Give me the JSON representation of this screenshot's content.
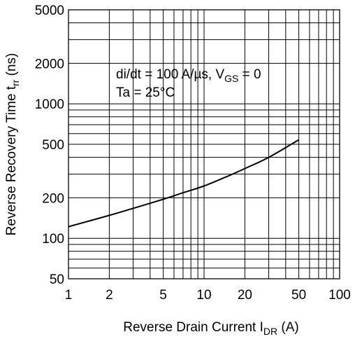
{
  "chart_data": {
    "type": "line",
    "title": "",
    "xlabel": {
      "main": "Reverse Drain Current  I",
      "sub": "DR",
      "unit": "  (A)"
    },
    "ylabel": {
      "main": "Reverse Recovery Time t",
      "sub": "rr",
      "unit": "  (ns)"
    },
    "xscale": "log",
    "yscale": "log",
    "xlim": [
      1,
      100
    ],
    "ylim": [
      50,
      5000
    ],
    "xticks": [
      1,
      2,
      5,
      10,
      20,
      50,
      100
    ],
    "xtick_labels": [
      "1",
      "2",
      "5",
      "10",
      "20",
      "50",
      "100"
    ],
    "yticks": [
      50,
      100,
      200,
      500,
      1000,
      2000,
      5000
    ],
    "ytick_labels": [
      "50",
      "100",
      "200",
      "500",
      "1000",
      "2000",
      "5000"
    ],
    "grid": true,
    "annotations": [
      {
        "parts": [
          {
            "text": "di/dt = 100 A/µs, V",
            "sub": false
          },
          {
            "text": "GS",
            "sub": true
          },
          {
            "text": " = 0",
            "sub": false
          }
        ]
      },
      {
        "parts": [
          {
            "text": "Ta = 25°C",
            "sub": false
          }
        ]
      }
    ],
    "series": [
      {
        "x": [
          1,
          2,
          3,
          5,
          7,
          10,
          15,
          20,
          30,
          50
        ],
        "y": [
          122,
          148,
          167,
          195,
          218,
          245,
          290,
          330,
          400,
          540
        ]
      }
    ],
    "colors": {
      "line": "#000000",
      "grid": "#000000",
      "background": "#ffffff"
    }
  }
}
